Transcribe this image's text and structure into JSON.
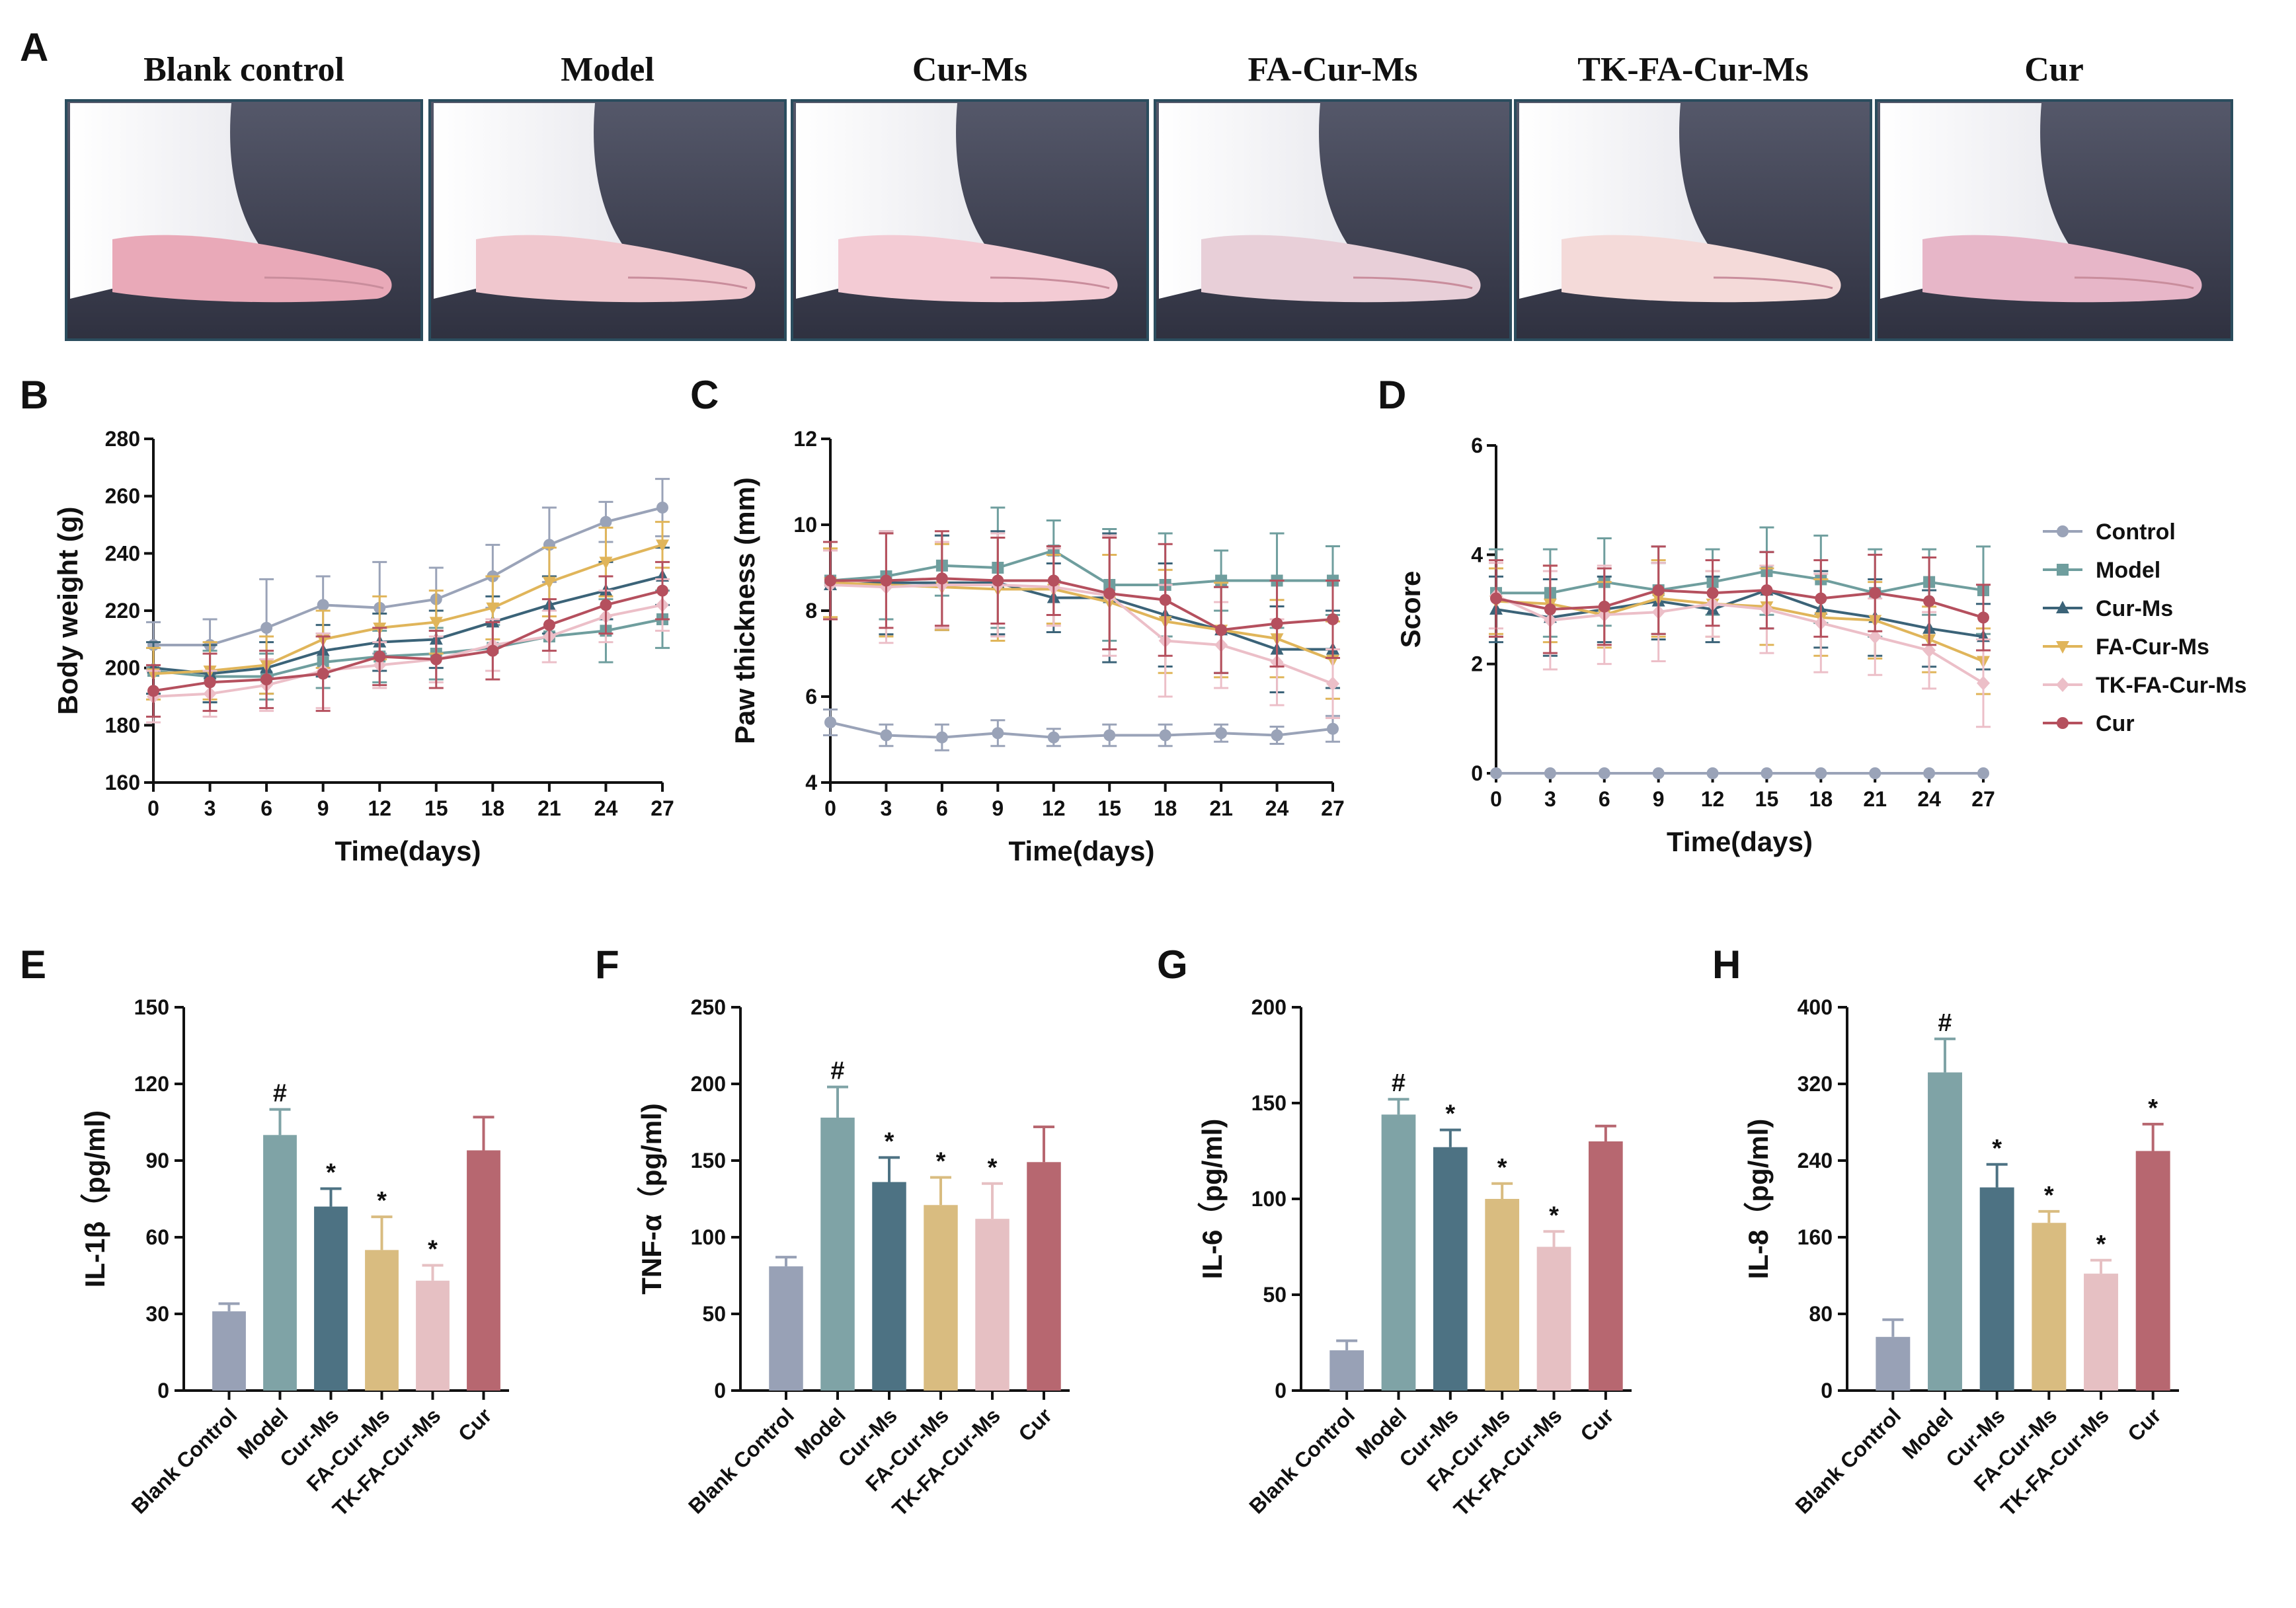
{
  "panels": {
    "A": "A",
    "B": "B",
    "C": "C",
    "D": "D",
    "E": "E",
    "F": "F",
    "G": "G",
    "H": "H"
  },
  "photo_titles": [
    "Blank control",
    "Model",
    "Cur-Ms",
    "FA-Cur-Ms",
    "TK-FA-Cur-Ms",
    "Cur"
  ],
  "legend": {
    "names": [
      "Control",
      "Model",
      "Cur-Ms",
      "FA-Cur-Ms",
      "TK-FA-Cur-Ms",
      "Cur"
    ],
    "colors": [
      "#9aa3b8",
      "#6f9e9e",
      "#3b6378",
      "#e0b55a",
      "#ecbfc8",
      "#b5505e"
    ],
    "markers": [
      "circle",
      "square",
      "triangle-up",
      "triangle-down",
      "diamond",
      "circle"
    ]
  },
  "colors": {
    "bars": [
      "#98a1b6",
      "#7fa3a6",
      "#4d7283",
      "#d9bc80",
      "#e6c0c3",
      "#b76770"
    ],
    "axis": "#111111"
  },
  "chart_data": [
    {
      "panel": "B",
      "type": "line",
      "xlabel": "Time(days)",
      "ylabel": "Body weight (g)",
      "x": [
        0,
        3,
        6,
        9,
        12,
        15,
        18,
        21,
        24,
        27
      ],
      "xlim": [
        0,
        27
      ],
      "ylim": [
        160,
        280
      ],
      "yticks": [
        160,
        180,
        200,
        220,
        240,
        260,
        280
      ],
      "series": [
        {
          "name": "Control",
          "values": [
            208,
            208,
            214,
            222,
            221,
            224,
            232,
            243,
            251,
            256
          ],
          "errors": [
            8,
            9,
            17,
            10,
            16,
            11,
            11,
            13,
            7,
            10
          ]
        },
        {
          "name": "Model",
          "values": [
            199,
            197,
            197,
            202,
            204,
            205,
            207,
            211,
            213,
            217
          ],
          "errors": [
            8,
            9,
            8,
            9,
            9,
            9,
            8,
            9,
            11,
            10
          ]
        },
        {
          "name": "Cur-Ms",
          "values": [
            200,
            198,
            200,
            206,
            209,
            210,
            216,
            222,
            227,
            232
          ],
          "errors": [
            9,
            10,
            9,
            9,
            10,
            10,
            9,
            10,
            10,
            10
          ]
        },
        {
          "name": "FA-Cur-Ms",
          "values": [
            198,
            199,
            201,
            210,
            214,
            216,
            221,
            230,
            237,
            243
          ],
          "errors": [
            9,
            10,
            10,
            10,
            11,
            11,
            11,
            12,
            12,
            8
          ]
        },
        {
          "name": "TK-FA-Cur-Ms",
          "values": [
            190,
            191,
            194,
            199,
            201,
            203,
            208,
            211,
            218,
            222
          ],
          "errors": [
            9,
            8,
            9,
            13,
            8,
            8,
            9,
            9,
            9,
            9
          ]
        },
        {
          "name": "Cur",
          "values": [
            192,
            195,
            196,
            198,
            204,
            203,
            206,
            215,
            222,
            227
          ],
          "errors": [
            9,
            10,
            10,
            13,
            10,
            10,
            10,
            9,
            10,
            10
          ]
        }
      ]
    },
    {
      "panel": "C",
      "type": "line",
      "xlabel": "Time(days)",
      "ylabel": "Paw thickness (mm)",
      "x": [
        0,
        3,
        6,
        9,
        12,
        15,
        18,
        21,
        24,
        27
      ],
      "xlim": [
        0,
        27
      ],
      "ylim": [
        4,
        12
      ],
      "yticks": [
        4,
        6,
        8,
        10,
        12
      ],
      "series": [
        {
          "name": "Control",
          "values": [
            5.4,
            5.1,
            5.05,
            5.15,
            5.05,
            5.1,
            5.1,
            5.15,
            5.1,
            5.25
          ],
          "errors": [
            0.3,
            0.25,
            0.3,
            0.3,
            0.2,
            0.25,
            0.25,
            0.2,
            0.2,
            0.3
          ]
        },
        {
          "name": "Model",
          "values": [
            8.7,
            8.8,
            9.05,
            9.0,
            9.4,
            8.6,
            8.6,
            8.7,
            8.7,
            8.7
          ],
          "errors": [
            0.9,
            1.0,
            0.7,
            1.4,
            0.7,
            1.3,
            1.2,
            0.7,
            1.1,
            0.8
          ]
        },
        {
          "name": "Cur-Ms",
          "values": [
            8.6,
            8.65,
            8.65,
            8.65,
            8.3,
            8.3,
            7.9,
            7.55,
            7.1,
            7.1
          ],
          "errors": [
            0.8,
            1.2,
            1.1,
            1.2,
            0.8,
            1.5,
            1.2,
            1.0,
            1.0,
            0.9
          ]
        },
        {
          "name": "FA-Cur-Ms",
          "values": [
            8.65,
            8.6,
            8.55,
            8.5,
            8.5,
            8.2,
            7.75,
            7.55,
            7.35,
            6.85
          ],
          "errors": [
            0.8,
            1.2,
            1.0,
            1.2,
            0.8,
            1.1,
            1.2,
            1.1,
            0.9,
            0.9
          ]
        },
        {
          "name": "TK-FA-Cur-Ms",
          "values": [
            8.6,
            8.55,
            8.6,
            8.6,
            8.55,
            8.35,
            7.3,
            7.2,
            6.8,
            6.3
          ],
          "errors": [
            0.8,
            1.3,
            1.0,
            1.2,
            0.9,
            1.4,
            1.3,
            1.0,
            1.0,
            0.8
          ]
        },
        {
          "name": "Cur",
          "values": [
            8.7,
            8.7,
            8.75,
            8.7,
            8.7,
            8.4,
            8.25,
            7.55,
            7.7,
            7.8
          ],
          "errors": [
            0.9,
            1.1,
            1.1,
            1.0,
            0.8,
            1.3,
            1.3,
            1.0,
            1.0,
            0.9
          ]
        }
      ]
    },
    {
      "panel": "D",
      "type": "line",
      "xlabel": "Time(days)",
      "ylabel": "Score",
      "x": [
        0,
        3,
        6,
        9,
        12,
        15,
        18,
        21,
        24,
        27
      ],
      "xlim": [
        0,
        27
      ],
      "ylim": [
        0,
        6
      ],
      "yticks": [
        0,
        2,
        4,
        6
      ],
      "series": [
        {
          "name": "Control",
          "values": [
            0,
            0,
            0,
            0,
            0,
            0,
            0,
            0,
            0,
            0
          ],
          "errors": [
            0,
            0,
            0,
            0,
            0,
            0,
            0,
            0,
            0,
            0
          ]
        },
        {
          "name": "Model",
          "values": [
            3.3,
            3.3,
            3.5,
            3.35,
            3.5,
            3.7,
            3.55,
            3.3,
            3.5,
            3.35
          ],
          "errors": [
            0.8,
            0.8,
            0.8,
            0.8,
            0.6,
            0.8,
            0.8,
            0.8,
            0.6,
            0.8
          ]
        },
        {
          "name": "Cur-Ms",
          "values": [
            3.0,
            2.85,
            3.0,
            3.15,
            3.0,
            3.35,
            3.0,
            2.85,
            2.65,
            2.5
          ],
          "errors": [
            0.6,
            0.7,
            0.6,
            0.7,
            0.6,
            0.7,
            0.7,
            0.7,
            0.7,
            0.6
          ]
        },
        {
          "name": "FA-Cur-Ms",
          "values": [
            3.15,
            3.1,
            2.9,
            3.2,
            3.1,
            3.05,
            2.85,
            2.8,
            2.45,
            2.05
          ],
          "errors": [
            0.6,
            0.7,
            0.6,
            0.7,
            0.6,
            0.7,
            0.7,
            0.7,
            0.6,
            0.6
          ]
        },
        {
          "name": "TK-FA-Cur-Ms",
          "values": [
            3.25,
            2.8,
            2.9,
            2.95,
            3.1,
            3.0,
            2.75,
            2.5,
            2.25,
            1.65
          ],
          "errors": [
            0.6,
            0.9,
            0.9,
            0.9,
            0.6,
            0.8,
            0.9,
            0.7,
            0.7,
            0.8
          ]
        },
        {
          "name": "Cur",
          "values": [
            3.2,
            3.0,
            3.05,
            3.35,
            3.3,
            3.35,
            3.2,
            3.3,
            3.15,
            2.85
          ],
          "errors": [
            0.7,
            0.8,
            0.7,
            0.8,
            0.6,
            0.7,
            0.7,
            0.7,
            0.8,
            0.6
          ]
        }
      ]
    },
    {
      "panel": "E",
      "type": "bar",
      "ylabel": "IL-1β（pg/ml)",
      "categories": [
        "Blank Control",
        "Model",
        "Cur-Ms",
        "FA-Cur-Ms",
        "TK-FA-Cur-Ms",
        "Cur"
      ],
      "values": [
        31,
        100,
        72,
        55,
        43,
        94
      ],
      "errors": [
        3,
        10,
        7,
        13,
        6,
        13
      ],
      "marks": [
        "",
        "#",
        "*",
        "*",
        "*",
        ""
      ],
      "ylim": [
        0,
        150
      ],
      "yticks": [
        0,
        30,
        60,
        90,
        120,
        150
      ]
    },
    {
      "panel": "F",
      "type": "bar",
      "ylabel": "TNF-α（pg/ml)",
      "categories": [
        "Blank Control",
        "Model",
        "Cur-Ms",
        "FA-Cur-Ms",
        "TK-FA-Cur-Ms",
        "Cur"
      ],
      "values": [
        81,
        178,
        136,
        121,
        112,
        149
      ],
      "errors": [
        6,
        20,
        16,
        18,
        23,
        23
      ],
      "marks": [
        "",
        "#",
        "*",
        "*",
        "*",
        ""
      ],
      "ylim": [
        0,
        250
      ],
      "yticks": [
        0,
        50,
        100,
        150,
        200,
        250
      ]
    },
    {
      "panel": "G",
      "type": "bar",
      "ylabel": "IL-6（pg/ml)",
      "categories": [
        "Blank Control",
        "Model",
        "Cur-Ms",
        "FA-Cur-Ms",
        "TK-FA-Cur-Ms",
        "Cur"
      ],
      "values": [
        21,
        144,
        127,
        100,
        75,
        130
      ],
      "errors": [
        5,
        8,
        9,
        8,
        8,
        8
      ],
      "marks": [
        "",
        "#",
        "*",
        "*",
        "*",
        ""
      ],
      "ylim": [
        0,
        200
      ],
      "yticks": [
        0,
        50,
        100,
        150,
        200
      ]
    },
    {
      "panel": "H",
      "type": "bar",
      "ylabel": "IL-8（pg/ml)",
      "categories": [
        "Blank Control",
        "Model",
        "Cur-Ms",
        "FA-Cur-Ms",
        "TK-FA-Cur-Ms",
        "Cur"
      ],
      "values": [
        56,
        332,
        212,
        175,
        122,
        250
      ],
      "errors": [
        18,
        35,
        24,
        12,
        14,
        28
      ],
      "marks": [
        "",
        "#",
        "*",
        "*",
        "*",
        "*"
      ],
      "ylim": [
        0,
        400
      ],
      "yticks": [
        0,
        80,
        160,
        240,
        320,
        400
      ]
    }
  ]
}
